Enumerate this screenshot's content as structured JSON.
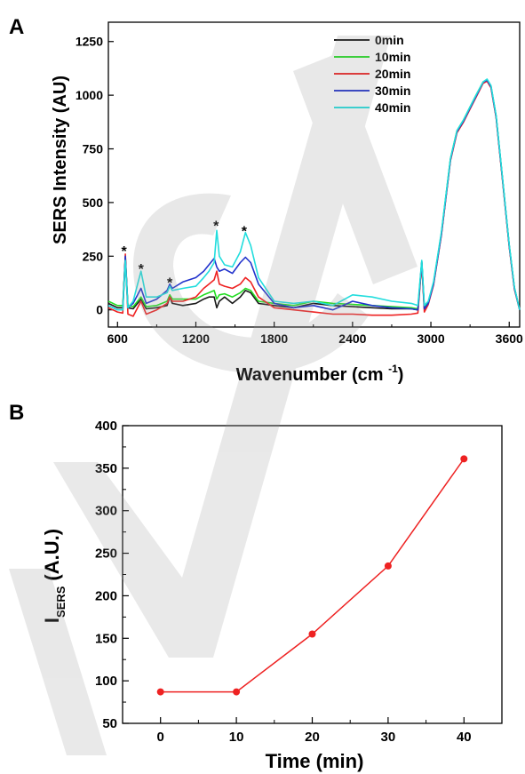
{
  "panels": [
    {
      "panel_label": "A",
      "chart_data": {
        "type": "line",
        "xlabel": "Wavenumber (cm-1)",
        "ylabel": "SERS Intensity (AU)",
        "xlim": [
          530,
          3680
        ],
        "ylim": [
          -80,
          1340
        ],
        "x_tick_labels": [
          "600",
          "1200",
          "1800",
          "2400",
          "3000",
          "3600"
        ],
        "y_tick_labels": [
          "0",
          "250",
          "500",
          "750",
          "1000",
          "1250"
        ],
        "grid": false,
        "legend_position": "top-right",
        "peak_markers": [
          {
            "x": 650,
            "y": 292,
            "label": "*"
          },
          {
            "x": 780,
            "y": 210,
            "label": "*"
          },
          {
            "x": 1000,
            "y": 145,
            "label": "*"
          },
          {
            "x": 1355,
            "y": 410,
            "label": "*"
          },
          {
            "x": 1570,
            "y": 385,
            "label": "*"
          }
        ],
        "series": [
          {
            "name": "0min",
            "color": "#1a1a1a",
            "x": [
              530,
              600,
              640,
              660,
              680,
              720,
              780,
              820,
              900,
              980,
              1000,
              1020,
              1100,
              1200,
              1260,
              1300,
              1340,
              1360,
              1380,
              1420,
              1480,
              1540,
              1580,
              1620,
              1680,
              1800,
              1950,
              2100,
              2250,
              2400,
              2550,
              2700,
              2850,
              2900,
              2930,
              2950,
              2980,
              3020,
              3080,
              3150,
              3200,
              3250,
              3300,
              3350,
              3400,
              3430,
              3460,
              3500,
              3550,
              3600,
              3640,
              3680
            ],
            "y": [
              30,
              10,
              10,
              240,
              10,
              5,
              50,
              5,
              10,
              20,
              60,
              30,
              20,
              30,
              50,
              60,
              60,
              10,
              40,
              60,
              30,
              60,
              90,
              80,
              30,
              20,
              10,
              30,
              20,
              15,
              10,
              5,
              5,
              0,
              220,
              5,
              30,
              120,
              350,
              700,
              830,
              880,
              940,
              1000,
              1060,
              1070,
              1040,
              900,
              600,
              300,
              100,
              0
            ]
          },
          {
            "name": "10min",
            "color": "#22dd22",
            "x": [
              530,
              600,
              640,
              660,
              680,
              720,
              780,
              820,
              900,
              980,
              1000,
              1020,
              1100,
              1200,
              1260,
              1300,
              1340,
              1360,
              1380,
              1420,
              1480,
              1540,
              1580,
              1620,
              1680,
              1800,
              1950,
              2100,
              2250,
              2400,
              2550,
              2700,
              2850,
              2900,
              2930,
              2950,
              2980,
              3020,
              3080,
              3150,
              3200,
              3250,
              3300,
              3350,
              3400,
              3430,
              3460,
              3500,
              3550,
              3600,
              3640,
              3680
            ],
            "y": [
              40,
              20,
              20,
              245,
              20,
              15,
              60,
              15,
              20,
              40,
              70,
              50,
              50,
              50,
              70,
              80,
              90,
              50,
              70,
              75,
              60,
              80,
              100,
              90,
              40,
              30,
              20,
              40,
              30,
              25,
              20,
              15,
              10,
              5,
              225,
              10,
              35,
              125,
              355,
              705,
              835,
              885,
              945,
              1005,
              1062,
              1072,
              1042,
              902,
              602,
              302,
              102,
              0
            ]
          },
          {
            "name": "20min",
            "color": "#ee2222",
            "x": [
              530,
              600,
              640,
              660,
              680,
              720,
              780,
              820,
              900,
              980,
              1000,
              1020,
              1100,
              1200,
              1260,
              1300,
              1340,
              1360,
              1380,
              1420,
              1480,
              1540,
              1580,
              1620,
              1680,
              1800,
              1950,
              2100,
              2250,
              2400,
              2550,
              2700,
              2850,
              2900,
              2930,
              2950,
              2980,
              3020,
              3080,
              3150,
              3200,
              3250,
              3300,
              3350,
              3400,
              3430,
              3460,
              3500,
              3550,
              3600,
              3640,
              3680
            ],
            "y": [
              10,
              -10,
              -15,
              260,
              -20,
              -30,
              40,
              -20,
              0,
              30,
              60,
              40,
              40,
              60,
              100,
              120,
              140,
              180,
              120,
              110,
              100,
              120,
              150,
              130,
              60,
              10,
              0,
              -10,
              -20,
              -20,
              -25,
              -25,
              -20,
              -15,
              215,
              -10,
              25,
              115,
              345,
              695,
              825,
              875,
              935,
              995,
              1055,
              1065,
              1035,
              895,
              595,
              295,
              95,
              0
            ]
          },
          {
            "name": "30min",
            "color": "#2233cc",
            "x": [
              530,
              600,
              640,
              660,
              680,
              720,
              780,
              820,
              900,
              980,
              1000,
              1020,
              1100,
              1200,
              1260,
              1300,
              1340,
              1360,
              1380,
              1420,
              1480,
              1540,
              1580,
              1620,
              1680,
              1800,
              1950,
              2100,
              2250,
              2400,
              2550,
              2700,
              2850,
              2900,
              2930,
              2950,
              2980,
              3020,
              3080,
              3150,
              3200,
              3250,
              3300,
              3350,
              3400,
              3430,
              3460,
              3500,
              3550,
              3600,
              3640,
              3680
            ],
            "y": [
              20,
              0,
              0,
              250,
              10,
              30,
              100,
              30,
              50,
              90,
              120,
              100,
              130,
              150,
              180,
              210,
              240,
              200,
              180,
              190,
              170,
              220,
              245,
              220,
              120,
              30,
              10,
              20,
              0,
              40,
              20,
              10,
              5,
              0,
              225,
              5,
              30,
              120,
              350,
              700,
              830,
              880,
              940,
              1000,
              1060,
              1070,
              1040,
              900,
              600,
              300,
              100,
              0
            ]
          },
          {
            "name": "40min",
            "color": "#22dddd",
            "x": [
              530,
              600,
              640,
              660,
              680,
              720,
              780,
              820,
              900,
              980,
              1000,
              1020,
              1100,
              1200,
              1260,
              1300,
              1340,
              1360,
              1380,
              1420,
              1480,
              1540,
              1580,
              1620,
              1680,
              1800,
              1950,
              2100,
              2250,
              2400,
              2550,
              2700,
              2850,
              2900,
              2930,
              2950,
              2980,
              3020,
              3080,
              3150,
              3200,
              3250,
              3300,
              3350,
              3400,
              3430,
              3460,
              3500,
              3550,
              3600,
              3640,
              3680
            ],
            "y": [
              20,
              0,
              0,
              230,
              10,
              40,
              180,
              60,
              60,
              80,
              110,
              90,
              100,
              110,
              150,
              180,
              220,
              370,
              250,
              210,
              200,
              270,
              360,
              300,
              150,
              40,
              30,
              40,
              20,
              70,
              60,
              40,
              30,
              20,
              230,
              20,
              40,
              130,
              360,
              705,
              835,
              885,
              945,
              1005,
              1062,
              1075,
              1045,
              905,
              605,
              305,
              105,
              0
            ]
          }
        ]
      }
    },
    {
      "panel_label": "B",
      "chart_data": {
        "type": "line",
        "xlabel": "Time (min)",
        "ylabel_main": "I",
        "ylabel_sub": "SERS",
        "ylabel_rest": "(A.U.)",
        "xlim": [
          -5,
          45
        ],
        "ylim": [
          50,
          400
        ],
        "x_tick_labels": [
          "0",
          "10",
          "20",
          "30",
          "40"
        ],
        "y_tick_labels": [
          "50",
          "100",
          "150",
          "200",
          "250",
          "300",
          "350",
          "400"
        ],
        "grid": false,
        "series": [
          {
            "name": "",
            "color": "#ee2222",
            "x": [
              0,
              10,
              20,
              30,
              40
            ],
            "y": [
              87,
              87,
              155,
              235,
              361
            ]
          }
        ]
      }
    }
  ]
}
